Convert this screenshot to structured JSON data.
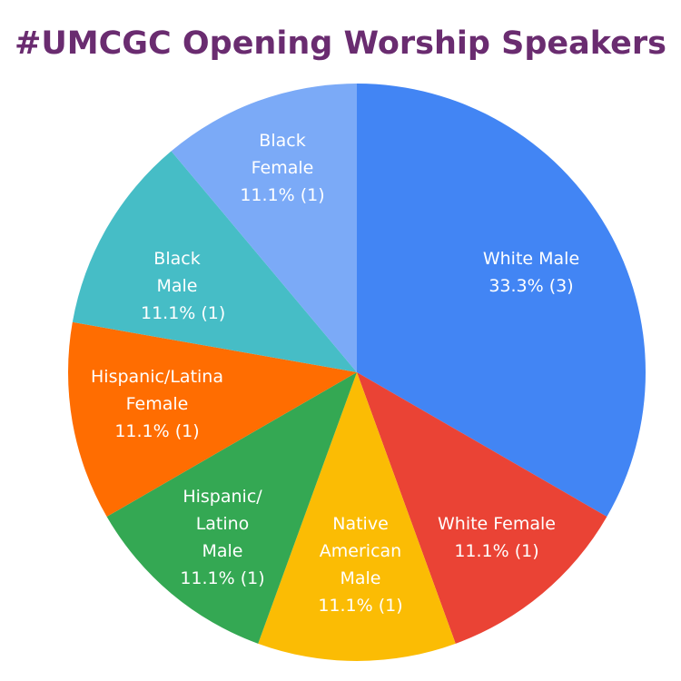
{
  "chart_data": {
    "type": "pie",
    "title": "#UMCGC Opening Worship Speakers",
    "categories": [
      "White Male",
      "White Female",
      "Native American Male",
      "Hispanic/ Latino Male",
      "Hispanic/Latina Female",
      "Black Male",
      "Black Female"
    ],
    "values": [
      33.3,
      11.1,
      11.1,
      11.1,
      11.1,
      11.1,
      11.1
    ],
    "value_labels": [
      "33.3% (3)",
      "11.1% (1)",
      "11.1% (1)",
      "11.1% (1)",
      "11.1% (1)",
      "11.1% (1)",
      "11.1% (1)"
    ],
    "colors": [
      "#4285f4",
      "#ea4335",
      "#fbbc04",
      "#34a853",
      "#ff6d01",
      "#46bdc6",
      "#7baaf7"
    ]
  }
}
